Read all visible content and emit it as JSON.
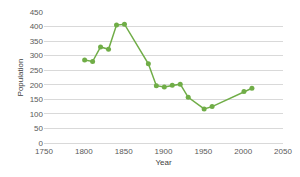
{
  "chart_data": {
    "type": "line",
    "x_label": "Year",
    "y_label": "Population",
    "x": [
      1801,
      1811,
      1821,
      1831,
      1841,
      1851,
      1881,
      1891,
      1901,
      1911,
      1921,
      1931,
      1951,
      1961,
      2001,
      2011
    ],
    "values": [
      285,
      280,
      330,
      322,
      405,
      408,
      272,
      197,
      192,
      198,
      202,
      157,
      117,
      125,
      177,
      188
    ],
    "color": "#70ad47",
    "marker": "circle",
    "line_style": "solid",
    "xlim": [
      1750,
      2050
    ],
    "xticks": [
      1750,
      1800,
      1850,
      1900,
      1950,
      2000,
      2050
    ],
    "ylim": [
      0,
      450
    ],
    "yticks": [
      0,
      50,
      100,
      150,
      200,
      250,
      300,
      350,
      400,
      450
    ],
    "grid": true
  }
}
